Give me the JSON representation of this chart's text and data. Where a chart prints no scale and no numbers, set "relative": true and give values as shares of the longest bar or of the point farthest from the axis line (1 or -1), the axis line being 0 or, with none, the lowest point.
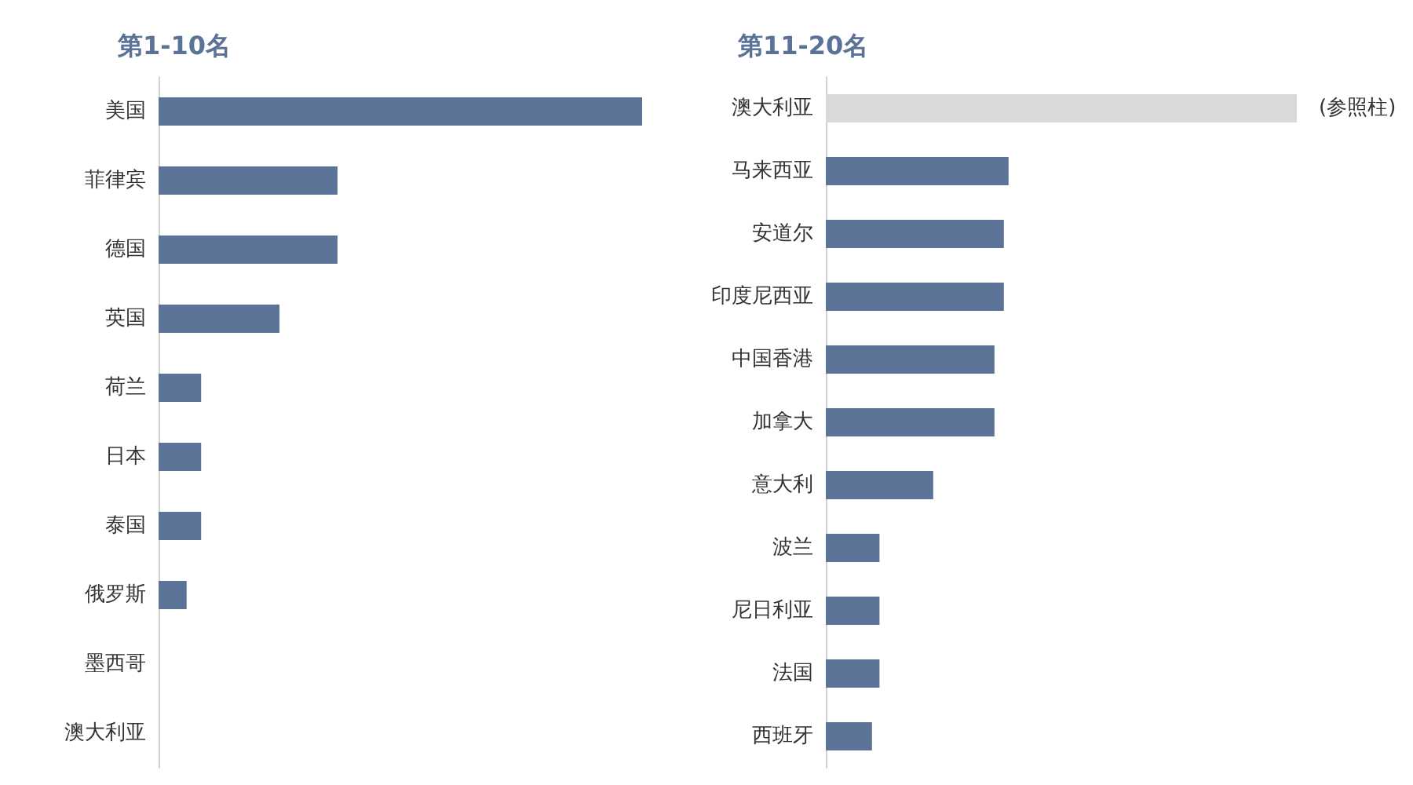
{
  "chart_data": [
    {
      "type": "bar",
      "orientation": "horizontal",
      "relative": true,
      "title": "第1-10名",
      "categories": [
        "美国",
        "菲律宾",
        "德国",
        "英国",
        "荷兰",
        "日本",
        "泰国",
        "俄罗斯",
        "墨西哥",
        "澳大利亚"
      ],
      "values": [
        1,
        0.37,
        0.37,
        0.25,
        0.088,
        0.088,
        0.088,
        0.058,
        0,
        0
      ],
      "color": "#5c7398"
    },
    {
      "type": "bar",
      "orientation": "horizontal",
      "relative": true,
      "title": "第11-20名",
      "categories": [
        "澳大利亚",
        "马来西亚",
        "安道尔",
        "印度尼西亚",
        "中国香港",
        "加拿大",
        "意大利",
        "波兰",
        "尼日利亚",
        "法国",
        "西班牙"
      ],
      "values": [
        1,
        0.388,
        0.378,
        0.378,
        0.358,
        0.358,
        0.228,
        0.114,
        0.114,
        0.114,
        0.098
      ],
      "colors": [
        "#d9d9d9",
        "#5c7398",
        "#5c7398",
        "#5c7398",
        "#5c7398",
        "#5c7398",
        "#5c7398",
        "#5c7398",
        "#5c7398",
        "#5c7398",
        "#5c7398"
      ],
      "annotations": [
        {
          "text": "(参照柱)",
          "x": 1,
          "y": "澳大利亚"
        }
      ]
    }
  ]
}
